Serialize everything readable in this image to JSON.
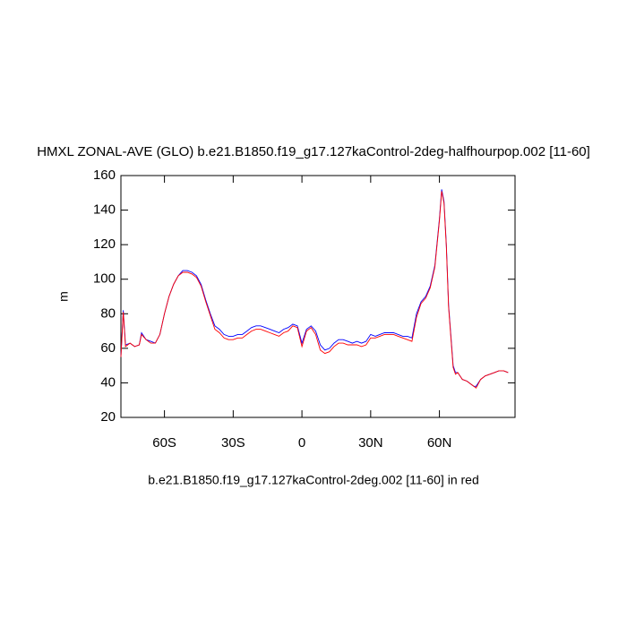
{
  "chart_data": {
    "type": "line",
    "title": "HMXL ZONAL-AVE (GLO) b.e21.B1850.f19_g17.127kaControl-2deg-halfhourpop.002 [11-60]",
    "xlabel": "b.e21.B1850.f19_g17.127kaControl-2deg.002 [11-60] in red",
    "ylabel": "m",
    "x": [
      -79,
      -78,
      -77,
      -75,
      -73,
      -71,
      -70,
      -68,
      -66,
      -64,
      -62,
      -60,
      -58,
      -56,
      -54,
      -52,
      -50,
      -48,
      -46,
      -44,
      -42,
      -40,
      -38,
      -36,
      -34,
      -32,
      -30,
      -28,
      -26,
      -24,
      -22,
      -20,
      -18,
      -16,
      -14,
      -12,
      -10,
      -8,
      -6,
      -4,
      -2,
      0,
      2,
      4,
      6,
      8,
      10,
      12,
      14,
      16,
      18,
      20,
      22,
      24,
      26,
      28,
      30,
      32,
      34,
      36,
      38,
      40,
      42,
      44,
      46,
      48,
      50,
      52,
      54,
      56,
      58,
      60,
      61,
      62,
      63,
      64,
      66,
      67,
      68,
      70,
      72,
      74,
      75,
      76,
      78,
      80,
      82,
      84,
      86,
      88,
      90
    ],
    "series": [
      {
        "color": "#0000ff",
        "values": [
          55,
          82,
          62,
          63,
          61,
          62,
          69,
          65,
          64,
          63,
          68,
          80,
          90,
          97,
          102,
          105,
          105,
          104,
          102,
          97,
          88,
          80,
          73,
          71,
          68,
          67,
          67,
          68,
          68,
          70,
          72,
          73,
          73,
          72,
          71,
          70,
          69,
          71,
          72,
          74,
          73,
          63,
          71,
          73,
          70,
          62,
          59,
          60,
          63,
          65,
          65,
          64,
          63,
          64,
          63,
          64,
          68,
          67,
          68,
          69,
          69,
          69,
          68,
          67,
          67,
          66,
          80,
          87,
          90,
          96,
          108,
          135,
          152,
          145,
          120,
          85,
          50,
          46,
          46,
          42,
          41,
          39,
          38,
          38,
          42,
          44,
          45,
          46,
          47,
          47,
          46
        ]
      },
      {
        "color": "#ff0000",
        "values": [
          55,
          81,
          61,
          63,
          61,
          62,
          68,
          65,
          63,
          63,
          68,
          80,
          90,
          97,
          102,
          104,
          104,
          103,
          101,
          96,
          87,
          79,
          71,
          69,
          66,
          65,
          65,
          66,
          66,
          68,
          70,
          71,
          71,
          70,
          69,
          68,
          67,
          69,
          70,
          73,
          72,
          61,
          70,
          72,
          68,
          59,
          57,
          58,
          61,
          63,
          63,
          62,
          62,
          62,
          61,
          62,
          66,
          66,
          67,
          68,
          68,
          68,
          67,
          66,
          65,
          64,
          78,
          86,
          89,
          95,
          107,
          134,
          151,
          144,
          119,
          84,
          49,
          45,
          46,
          42,
          41,
          39,
          38,
          37,
          42,
          44,
          45,
          46,
          47,
          47,
          46
        ]
      }
    ],
    "xlim": [
      -79,
      93
    ],
    "xticks": [
      {
        "value": -60,
        "label": "60S"
      },
      {
        "value": -30,
        "label": "30S"
      },
      0,
      {
        "value": 30,
        "label": "30N"
      },
      {
        "value": 60,
        "label": "60N"
      }
    ],
    "ylim": [
      20,
      160
    ],
    "yticks": [
      20,
      40,
      60,
      80,
      100,
      120,
      140,
      160
    ]
  }
}
